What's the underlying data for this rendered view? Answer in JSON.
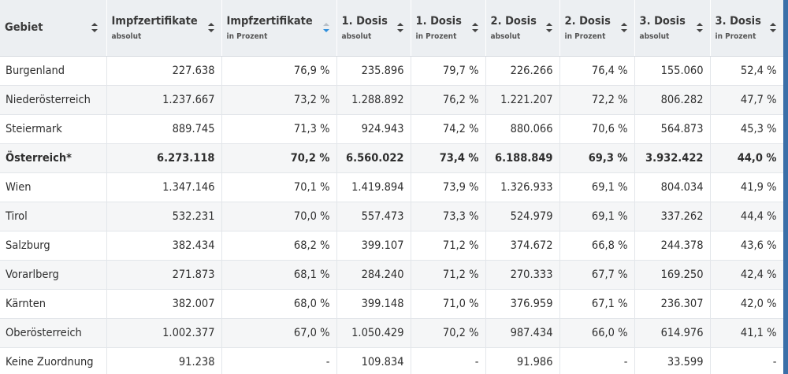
{
  "columns": [
    {
      "title": "Gebiet",
      "subtitle": "",
      "sort": "none"
    },
    {
      "title": "Impfzertifikate",
      "subtitle": "absolut",
      "sort": "none"
    },
    {
      "title": "Impfzertifikate",
      "subtitle": "in Prozent",
      "sort": "desc"
    },
    {
      "title": "1. Dosis",
      "subtitle": "absolut",
      "sort": "none"
    },
    {
      "title": "1. Dosis",
      "subtitle": "in Prozent",
      "sort": "none"
    },
    {
      "title": "2. Dosis",
      "subtitle": "absolut",
      "sort": "none"
    },
    {
      "title": "2. Dosis",
      "subtitle": "in Prozent",
      "sort": "none"
    },
    {
      "title": "3. Dosis",
      "subtitle": "absolut",
      "sort": "none"
    },
    {
      "title": "3. Dosis",
      "subtitle": "in Prozent",
      "sort": "none"
    }
  ],
  "rows": [
    {
      "name": "Burgenland",
      "bold": false,
      "cells": [
        "227.638",
        "76,9 %",
        "235.896",
        "79,7 %",
        "226.266",
        "76,4 %",
        "155.060",
        "52,4 %"
      ]
    },
    {
      "name": "Niederösterreich",
      "bold": false,
      "cells": [
        "1.237.667",
        "73,2 %",
        "1.288.892",
        "76,2 %",
        "1.221.207",
        "72,2 %",
        "806.282",
        "47,7 %"
      ]
    },
    {
      "name": "Steiermark",
      "bold": false,
      "cells": [
        "889.745",
        "71,3 %",
        "924.943",
        "74,2 %",
        "880.066",
        "70,6 %",
        "564.873",
        "45,3 %"
      ]
    },
    {
      "name": "Österreich*",
      "bold": true,
      "cells": [
        "6.273.118",
        "70,2 %",
        "6.560.022",
        "73,4 %",
        "6.188.849",
        "69,3 %",
        "3.932.422",
        "44,0 %"
      ]
    },
    {
      "name": "Wien",
      "bold": false,
      "cells": [
        "1.347.146",
        "70,1 %",
        "1.419.894",
        "73,9 %",
        "1.326.933",
        "69,1 %",
        "804.034",
        "41,9 %"
      ]
    },
    {
      "name": "Tirol",
      "bold": false,
      "cells": [
        "532.231",
        "70,0 %",
        "557.473",
        "73,3 %",
        "524.979",
        "69,1 %",
        "337.262",
        "44,4 %"
      ]
    },
    {
      "name": "Salzburg",
      "bold": false,
      "cells": [
        "382.434",
        "68,2 %",
        "399.107",
        "71,2 %",
        "374.672",
        "66,8 %",
        "244.378",
        "43,6 %"
      ]
    },
    {
      "name": "Vorarlberg",
      "bold": false,
      "cells": [
        "271.873",
        "68,1 %",
        "284.240",
        "71,2 %",
        "270.333",
        "67,7 %",
        "169.250",
        "42,4 %"
      ]
    },
    {
      "name": "Kärnten",
      "bold": false,
      "cells": [
        "382.007",
        "68,0 %",
        "399.148",
        "71,0 %",
        "376.959",
        "67,1 %",
        "236.307",
        "42,0 %"
      ]
    },
    {
      "name": "Oberösterreich",
      "bold": false,
      "cells": [
        "1.002.377",
        "67,0 %",
        "1.050.429",
        "70,2 %",
        "987.434",
        "66,0 %",
        "614.976",
        "41,1 %"
      ]
    },
    {
      "name": "Keine Zuordnung",
      "bold": false,
      "cells": [
        "91.238",
        "-",
        "109.834",
        "-",
        "91.986",
        "-",
        "33.599",
        "-"
      ]
    }
  ],
  "colors": {
    "header_bg": "#eceff2",
    "sort_active": "#2f8fdc",
    "sort_inactive": "#444444",
    "row_alt": "#f5f6f7",
    "edge": "#3a6fa8"
  }
}
